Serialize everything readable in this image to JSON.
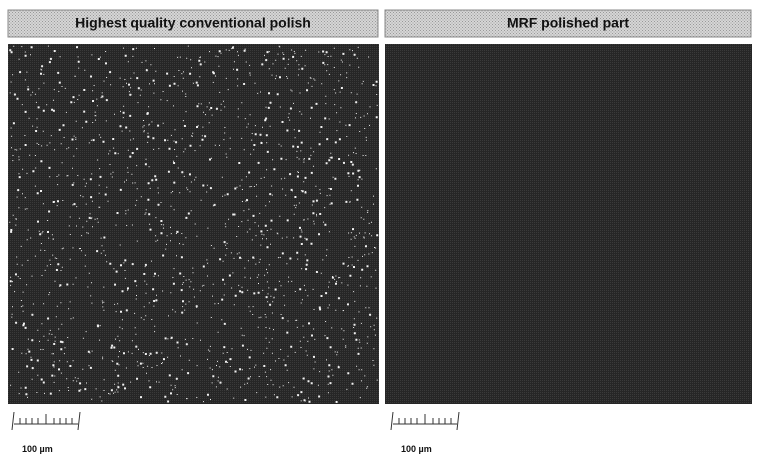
{
  "panels": [
    {
      "title": "Highest quality conventional polish",
      "scale_label": "100 µm"
    },
    {
      "title": "MRF polished part",
      "scale_label": "100 µm"
    }
  ]
}
